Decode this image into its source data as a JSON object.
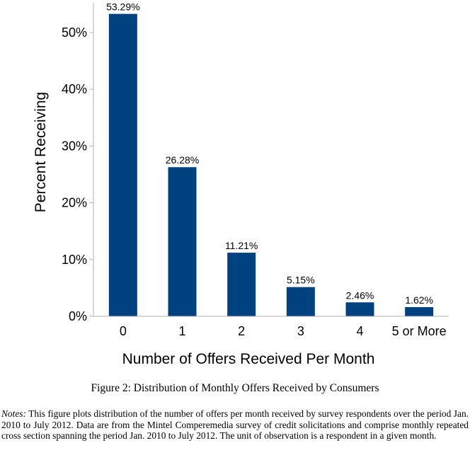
{
  "chart_data": {
    "type": "bar",
    "categories": [
      "0",
      "1",
      "2",
      "3",
      "4",
      "5 or More"
    ],
    "values": [
      53.29,
      26.28,
      11.21,
      5.15,
      2.46,
      1.62
    ],
    "data_labels": [
      "53.29%",
      "26.28%",
      "11.21%",
      "5.15%",
      "2.46%",
      "1.62%"
    ],
    "xlabel": "Number of Offers Received Per Month",
    "ylabel": "Percent Receiving",
    "ylim": [
      0,
      55
    ],
    "yticks": [
      0,
      10,
      20,
      30,
      40,
      50
    ],
    "ytick_labels": [
      "0%",
      "10%",
      "20%",
      "30%",
      "40%",
      "50%"
    ],
    "grid": false,
    "bar_color": "#00427f"
  },
  "caption": "Figure 2: Distribution of Monthly Offers Received by Consumers",
  "notes": {
    "label": "Notes:",
    "text": " This figure plots distribution of the number of offers per month received by survey respondents over the period Jan. 2010 to July 2012. Data are from the Mintel Comperemedia survey of credit solicitations and comprise monthly repeated cross section spanning the period Jan. 2010 to July 2012. The unit of observation is a respondent in a given month."
  }
}
